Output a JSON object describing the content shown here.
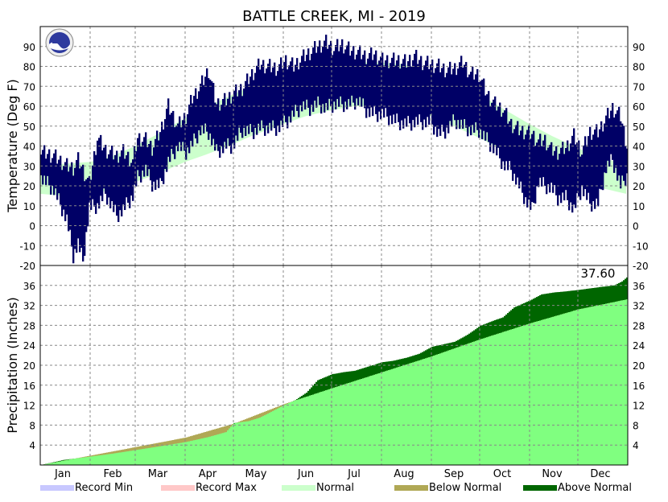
{
  "chart_data": {
    "type": "area",
    "title": "BATTLE CREEK, MI - 2019",
    "months": [
      "Jan",
      "Feb",
      "Mar",
      "Apr",
      "May",
      "Jun",
      "Jul",
      "Aug",
      "Sep",
      "Oct",
      "Nov",
      "Dec"
    ],
    "legend": {
      "position": "bottom",
      "items": [
        {
          "label": "Record Min",
          "color": "#c8c8ff"
        },
        {
          "label": "Record Max",
          "color": "#ffc8c8"
        },
        {
          "label": "Normal",
          "color": "#ccffcc"
        },
        {
          "label": "Below Normal",
          "color": "#b0a855"
        },
        {
          "label": "Above Normal",
          "color": "#006600"
        }
      ]
    },
    "temperature": {
      "ylabel": "Temperature (Deg F)",
      "ylim": [
        -20,
        100
      ],
      "yticks": [
        -20,
        -10,
        0,
        10,
        20,
        30,
        40,
        50,
        60,
        70,
        80,
        90
      ],
      "grid": true,
      "colors": {
        "observed": "#000066",
        "normal": "#ccffcc"
      },
      "normal": {
        "day": [
          1,
          15,
          32,
          46,
          60,
          74,
          91,
          105,
          121,
          135,
          152,
          166,
          182,
          196,
          213,
          227,
          244,
          258,
          274,
          288,
          305,
          319,
          335,
          349,
          365
        ],
        "high": [
          31,
          31,
          32,
          35,
          40,
          46,
          54,
          60,
          66,
          71,
          76,
          79,
          81,
          82,
          82,
          81,
          77,
          73,
          66,
          59,
          51,
          45,
          39,
          34,
          31
        ],
        "low": [
          16,
          15,
          16,
          18,
          22,
          26,
          32,
          36,
          41,
          46,
          51,
          55,
          58,
          60,
          60,
          59,
          55,
          50,
          44,
          38,
          33,
          29,
          24,
          19,
          16
        ]
      },
      "observed": {
        "day": [
          1,
          9,
          17,
          21,
          24,
          27,
          31,
          36,
          41,
          48,
          52,
          58,
          61,
          66,
          70,
          75,
          80,
          86,
          91,
          95,
          100,
          105,
          110,
          116,
          120,
          126,
          132,
          137,
          142,
          148,
          153,
          158,
          163,
          168,
          173,
          178,
          183,
          188,
          193,
          198,
          203,
          208,
          213,
          218,
          223,
          228,
          233,
          238,
          243,
          248,
          253,
          258,
          263,
          268,
          273,
          278,
          283,
          288,
          293,
          298,
          302,
          306,
          310,
          314,
          318,
          322,
          327,
          332,
          337,
          342,
          347,
          352,
          356,
          361,
          365
        ],
        "high": [
          37,
          35,
          30,
          29,
          33,
          28,
          21,
          44,
          38,
          35,
          37,
          32,
          44,
          43,
          39,
          47,
          60,
          50,
          55,
          64,
          70,
          78,
          61,
          63,
          66,
          69,
          76,
          81,
          80,
          79,
          83,
          80,
          84,
          87,
          90,
          92,
          89,
          91,
          88,
          87,
          85,
          86,
          83,
          83,
          83,
          82,
          85,
          82,
          81,
          80,
          78,
          79,
          82,
          76,
          76,
          66,
          61,
          58,
          51,
          48,
          47,
          46,
          42,
          43,
          38,
          37,
          39,
          45,
          37,
          47,
          47,
          54,
          59,
          55,
          40
        ],
        "low": [
          24,
          18,
          3,
          -15,
          -9,
          -18,
          9,
          10,
          16,
          5,
          8,
          15,
          24,
          28,
          21,
          20,
          32,
          40,
          37,
          41,
          48,
          47,
          37,
          40,
          40,
          48,
          47,
          49,
          49,
          49,
          52,
          56,
          60,
          59,
          61,
          59,
          61,
          61,
          61,
          63,
          58,
          56,
          56,
          54,
          52,
          51,
          52,
          52,
          52,
          46,
          48,
          53,
          50,
          48,
          48,
          43,
          38,
          31,
          28,
          20,
          13,
          8,
          22,
          20,
          19,
          14,
          14,
          8,
          19,
          11,
          11,
          29,
          33,
          20,
          25
        ]
      }
    },
    "precipitation": {
      "ylabel": "Precipitation (Inches)",
      "ylim": [
        0,
        40
      ],
      "yticks": [
        4,
        8,
        12,
        16,
        20,
        24,
        28,
        32,
        36
      ],
      "grid": true,
      "total_label": "37.60",
      "colors": {
        "normal": "#80ff80",
        "below": "#b0a855",
        "above": "#006600"
      },
      "normal": {
        "day": [
          1,
          32,
          60,
          91,
          121,
          152,
          182,
          213,
          244,
          274,
          305,
          335,
          365
        ],
        "value": [
          0,
          1.9,
          3.6,
          5.5,
          8.3,
          12.2,
          15.4,
          18.6,
          21.8,
          25.2,
          28.4,
          31.2,
          33.2
        ]
      },
      "observed": {
        "day": [
          1,
          15,
          32,
          46,
          60,
          74,
          91,
          105,
          116,
          121,
          130,
          137,
          142,
          152,
          159,
          166,
          173,
          182,
          189,
          196,
          203,
          213,
          220,
          228,
          236,
          244,
          251,
          258,
          266,
          274,
          281,
          288,
          295,
          305,
          312,
          320,
          327,
          335,
          342,
          349,
          357,
          362,
          365
        ],
        "value": [
          0,
          1.0,
          1.7,
          2.3,
          3.0,
          3.7,
          4.6,
          5.6,
          6.6,
          8.4,
          8.8,
          9.5,
          10.3,
          12.0,
          13.0,
          14.5,
          17.0,
          18.2,
          18.6,
          18.9,
          19.6,
          20.6,
          20.9,
          21.5,
          22.3,
          23.7,
          24.2,
          24.7,
          26.1,
          27.9,
          28.8,
          29.6,
          31.6,
          33.0,
          34.2,
          34.6,
          34.8,
          35.1,
          35.4,
          35.7,
          36.0,
          36.8,
          37.6
        ]
      }
    }
  }
}
